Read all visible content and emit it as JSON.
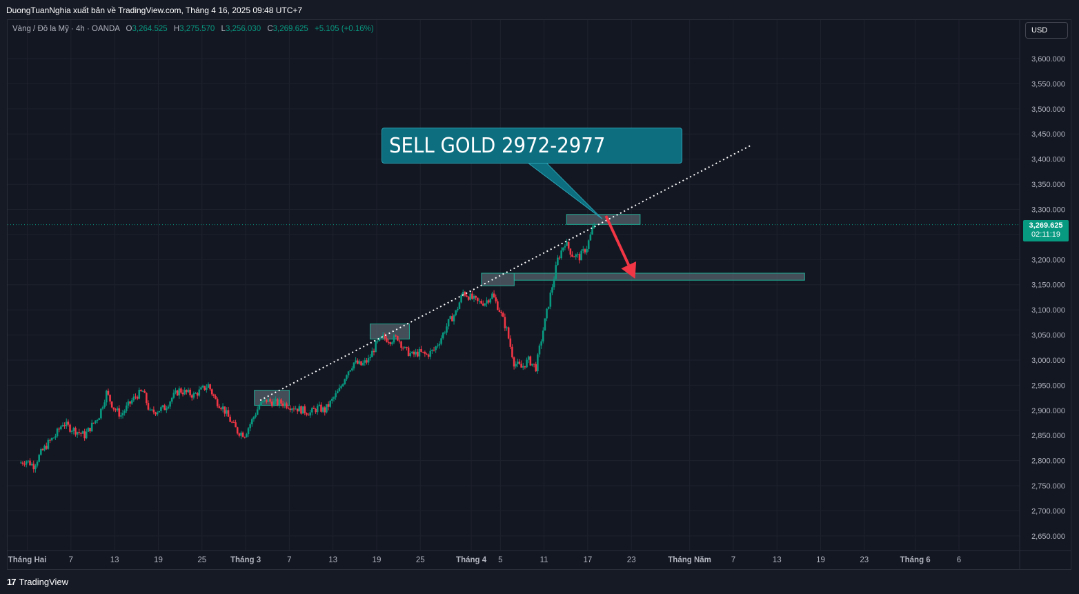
{
  "publisher_line": "DuongTuanNghia xuất bản về TradingView.com, Tháng 4 16, 2025 09:48 UTC+7",
  "legend": {
    "symbol": "Vàng / Đô la Mỹ · 4h · OANDA",
    "o_label": "O",
    "o_value": "3,264.525",
    "h_label": "H",
    "h_value": "3,275.570",
    "l_label": "L",
    "l_value": "3,256.030",
    "c_label": "C",
    "c_value": "3,269.625",
    "change": "+5.105 (+0.16%)"
  },
  "currency": "USD",
  "last_price": {
    "price": "3,269.625",
    "countdown": "02:11:19"
  },
  "annotation": {
    "text": "SELL GOLD 2972-2977"
  },
  "footer": {
    "logo_text": "TradingView"
  },
  "colors": {
    "up": "#089981",
    "down": "#f23645",
    "zone": "#5d6b78",
    "callout": "#0d6e7f",
    "arrow": "#f23645"
  },
  "chart_data": {
    "type": "candlestick",
    "ylim": [
      2620,
      3640
    ],
    "y_ticks": [
      "3,600.000",
      "3,550.000",
      "3,500.000",
      "3,450.000",
      "3,400.000",
      "3,350.000",
      "3,300.000",
      "3,250.000",
      "3,200.000",
      "3,150.000",
      "3,100.000",
      "3,050.000",
      "3,000.000",
      "2,950.000",
      "2,900.000",
      "2,850.000",
      "2,800.000",
      "2,750.000",
      "2,700.000",
      "2,650.000"
    ],
    "x_ticks": [
      {
        "label": "Tháng Hai",
        "day": 1
      },
      {
        "label": "7",
        "day": 7
      },
      {
        "label": "13",
        "day": 13
      },
      {
        "label": "19",
        "day": 19
      },
      {
        "label": "25",
        "day": 25
      },
      {
        "label": "Tháng 3",
        "day": 31
      },
      {
        "label": "7",
        "day": 37
      },
      {
        "label": "13",
        "day": 43
      },
      {
        "label": "19",
        "day": 49
      },
      {
        "label": "25",
        "day": 55
      },
      {
        "label": "Tháng 4",
        "day": 62
      },
      {
        "label": "5",
        "day": 66
      },
      {
        "label": "11",
        "day": 72
      },
      {
        "label": "17",
        "day": 78
      },
      {
        "label": "23",
        "day": 84
      },
      {
        "label": "Tháng Năm",
        "day": 92
      },
      {
        "label": "7",
        "day": 98
      },
      {
        "label": "13",
        "day": 104
      },
      {
        "label": "19",
        "day": 110
      },
      {
        "label": "23",
        "day": 116
      },
      {
        "label": "Tháng 6",
        "day": 123
      },
      {
        "label": "6",
        "day": 129
      }
    ],
    "price_path": [
      [
        0,
        2795
      ],
      [
        1,
        2800
      ],
      [
        2,
        2790
      ],
      [
        3,
        2815
      ],
      [
        4,
        2835
      ],
      [
        5,
        2850
      ],
      [
        6,
        2875
      ],
      [
        7,
        2865
      ],
      [
        8,
        2858
      ],
      [
        9,
        2850
      ],
      [
        10,
        2870
      ],
      [
        11,
        2890
      ],
      [
        12,
        2935
      ],
      [
        13,
        2905
      ],
      [
        14,
        2890
      ],
      [
        15,
        2910
      ],
      [
        16,
        2928
      ],
      [
        17,
        2938
      ],
      [
        18,
        2895
      ],
      [
        19,
        2900
      ],
      [
        20,
        2905
      ],
      [
        21,
        2925
      ],
      [
        22,
        2940
      ],
      [
        23,
        2935
      ],
      [
        24,
        2930
      ],
      [
        25,
        2940
      ],
      [
        26,
        2950
      ],
      [
        27,
        2920
      ],
      [
        28,
        2905
      ],
      [
        29,
        2880
      ],
      [
        30,
        2858
      ],
      [
        31,
        2852
      ],
      [
        32,
        2880
      ],
      [
        33,
        2910
      ],
      [
        34,
        2920
      ],
      [
        35,
        2915
      ],
      [
        36,
        2915
      ],
      [
        37,
        2910
      ],
      [
        38,
        2905
      ],
      [
        39,
        2900
      ],
      [
        40,
        2895
      ],
      [
        41,
        2905
      ],
      [
        42,
        2900
      ],
      [
        43,
        2920
      ],
      [
        44,
        2940
      ],
      [
        45,
        2975
      ],
      [
        46,
        2995
      ],
      [
        47,
        2990
      ],
      [
        48,
        3000
      ],
      [
        49,
        3030
      ],
      [
        50,
        3045
      ],
      [
        51,
        3040
      ],
      [
        52,
        3045
      ],
      [
        53,
        3020
      ],
      [
        54,
        3010
      ],
      [
        55,
        3015
      ],
      [
        56,
        3010
      ],
      [
        57,
        3020
      ],
      [
        58,
        3045
      ],
      [
        59,
        3075
      ],
      [
        60,
        3095
      ],
      [
        61,
        3135
      ],
      [
        62,
        3125
      ],
      [
        63,
        3115
      ],
      [
        64,
        3115
      ],
      [
        65,
        3130
      ],
      [
        66,
        3100
      ],
      [
        67,
        3060
      ],
      [
        68,
        2995
      ],
      [
        69,
        2985
      ],
      [
        70,
        3000
      ],
      [
        71,
        2985
      ],
      [
        72,
        3060
      ],
      [
        73,
        3130
      ],
      [
        74,
        3200
      ],
      [
        75,
        3235
      ],
      [
        76,
        3210
      ],
      [
        77,
        3205
      ],
      [
        78,
        3225
      ],
      [
        79,
        3270
      ]
    ],
    "last_price": 3269.625,
    "zones": [
      {
        "day_start": 32.2,
        "day_end": 37,
        "top": 2940,
        "bottom": 2910
      },
      {
        "day_start": 48.1,
        "day_end": 53.5,
        "top": 3072,
        "bottom": 3042
      },
      {
        "day_start": 63.4,
        "day_end": 67.9,
        "top": 3173,
        "bottom": 3148
      },
      {
        "day_start": 67.9,
        "day_end": 107.8,
        "top": 3173,
        "bottom": 3159
      },
      {
        "day_start": 75.1,
        "day_end": 85.2,
        "top": 3290,
        "bottom": 3270
      }
    ],
    "trendline": {
      "from": [
        33,
        2920
      ],
      "to": [
        100.5,
        3428
      ]
    },
    "arrow": {
      "from": [
        80.5,
        3287
      ],
      "to": [
        84.5,
        3162
      ]
    },
    "callout_pointer": [
      80,
      3281
    ]
  }
}
